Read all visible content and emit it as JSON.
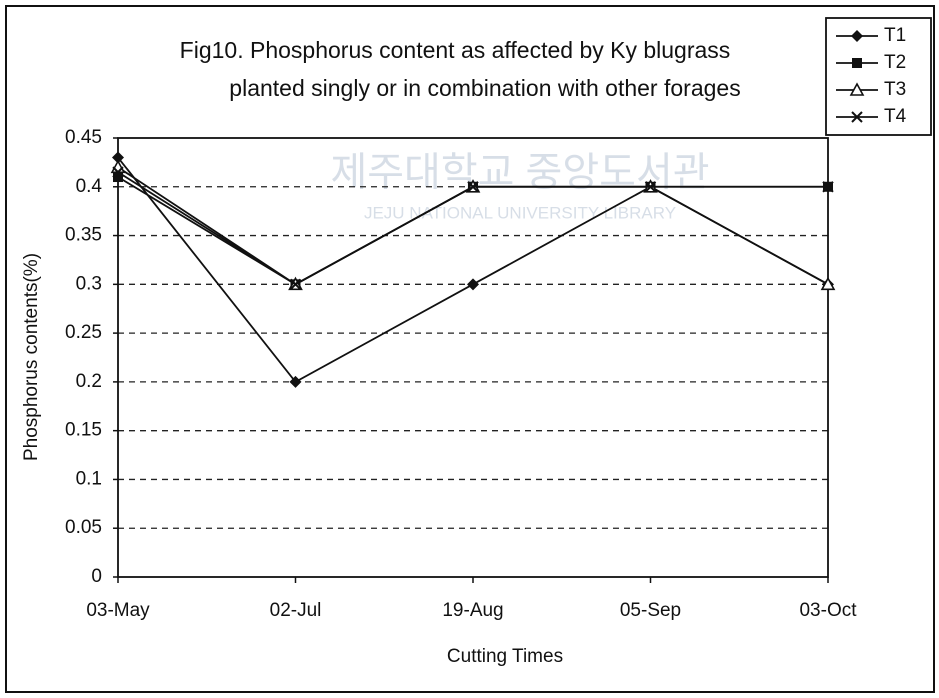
{
  "chart_data": {
    "type": "line",
    "title": [
      "Fig10. Phosphorus content as affected by Ky blugrass",
      "planted singly or in combination with other forages"
    ],
    "x_label": "Cutting Times",
    "y_label": "Phosphorus contents(%)",
    "categories": [
      "03-May",
      "02-Jul",
      "19-Aug",
      "05-Sep",
      "03-Oct"
    ],
    "series": [
      {
        "name": "T1",
        "color": "#111111",
        "marker": "diamond",
        "values": [
          0.43,
          0.2,
          0.3,
          0.4,
          0.3
        ]
      },
      {
        "name": "T2",
        "color": "#111111",
        "marker": "square",
        "values": [
          0.41,
          0.3,
          0.4,
          0.4,
          0.4
        ]
      },
      {
        "name": "T3",
        "color": "#111111",
        "marker": "triangle",
        "values": [
          0.42,
          0.3,
          0.4,
          0.4,
          0.3
        ]
      },
      {
        "name": "T4",
        "color": "#111111",
        "marker": "x",
        "values": [
          0.415,
          0.3,
          0.4,
          0.4,
          0.4
        ]
      }
    ],
    "ylim": [
      0,
      0.45
    ],
    "yticks": [
      0,
      0.05,
      0.1,
      0.15,
      0.2,
      0.25,
      0.3,
      0.35,
      0.4,
      0.45
    ],
    "grid": true,
    "legend": "top-right"
  },
  "watermark": [
    "제주대학교 중앙도서관",
    "JEJU NATIONAL UNIVERSITY LIBRARY"
  ]
}
